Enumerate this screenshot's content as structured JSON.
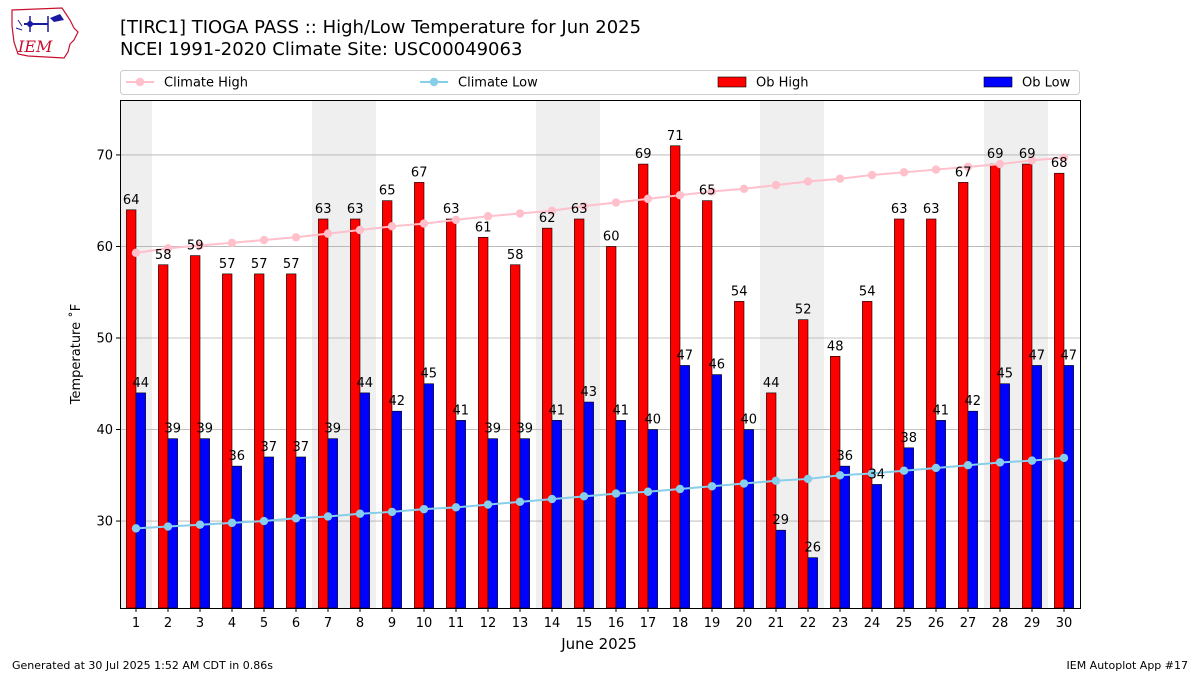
{
  "header": {
    "logo_text": "IEM",
    "title_line1": "[TIRC1] TIOGA PASS :: High/Low Temperature for Jun 2025",
    "title_line2": "NCEI 1991-2020 Climate Site: USC00049063"
  },
  "footer": {
    "generated": "Generated at 30 Jul 2025 1:52 AM CDT in 0.86s",
    "app": "IEM Autoplot App #17"
  },
  "chart_data": {
    "type": "bar",
    "xlabel": "June 2025",
    "ylabel": "Temperature ˚F",
    "ylim": [
      20.5,
      76
    ],
    "yticks": [
      30,
      40,
      50,
      60,
      70
    ],
    "grid": true,
    "legend_position": "top",
    "categories": [
      1,
      2,
      3,
      4,
      5,
      6,
      7,
      8,
      9,
      10,
      11,
      12,
      13,
      14,
      15,
      16,
      17,
      18,
      19,
      20,
      21,
      22,
      23,
      24,
      25,
      26,
      27,
      28,
      29,
      30
    ],
    "weekend_shading": [
      [
        1,
        1
      ],
      [
        7,
        8
      ],
      [
        14,
        15
      ],
      [
        21,
        22
      ],
      [
        28,
        29
      ]
    ],
    "series": [
      {
        "name": "Ob High",
        "kind": "bar",
        "color": "#ff0000",
        "values": [
          64,
          58,
          59,
          57,
          57,
          57,
          63,
          63,
          65,
          67,
          63,
          61,
          58,
          62,
          63,
          60,
          69,
          71,
          65,
          54,
          44,
          52,
          48,
          54,
          63,
          63,
          67,
          69,
          69,
          68
        ],
        "labels": [
          64,
          58,
          59,
          57,
          57,
          57,
          63,
          63,
          65,
          67,
          63,
          61,
          58,
          62,
          63,
          60,
          69,
          71,
          65,
          54,
          44,
          52,
          48,
          54,
          63,
          63,
          67,
          69,
          69,
          68
        ]
      },
      {
        "name": "Ob Low",
        "kind": "bar",
        "color": "#0000ff",
        "values": [
          44,
          39,
          39,
          36,
          37,
          37,
          39,
          44,
          42,
          45,
          41,
          39,
          39,
          41,
          43,
          41,
          40,
          47,
          46,
          40,
          29,
          26,
          36,
          34,
          38,
          41,
          42,
          45,
          47,
          47
        ],
        "labels": [
          44,
          39,
          39,
          36,
          37,
          37,
          39,
          44,
          42,
          45,
          41,
          39,
          39,
          41,
          43,
          41,
          40,
          47,
          46,
          40,
          29,
          26,
          36,
          34,
          38,
          41,
          42,
          45,
          47,
          47
        ]
      },
      {
        "name": "Climate High",
        "kind": "line",
        "color": "#ffc0cb",
        "values": [
          59.3,
          59.8,
          60.1,
          60.4,
          60.7,
          61.0,
          61.4,
          61.8,
          62.2,
          62.5,
          62.9,
          63.3,
          63.6,
          63.9,
          64.4,
          64.8,
          65.2,
          65.6,
          66.0,
          66.3,
          66.7,
          67.1,
          67.4,
          67.8,
          68.1,
          68.4,
          68.7,
          69.0,
          69.4,
          69.7
        ]
      },
      {
        "name": "Climate Low",
        "kind": "line",
        "color": "#87ceeb",
        "values": [
          29.2,
          29.4,
          29.6,
          29.8,
          30.0,
          30.3,
          30.5,
          30.8,
          31.0,
          31.3,
          31.5,
          31.8,
          32.1,
          32.4,
          32.7,
          33.0,
          33.2,
          33.5,
          33.8,
          34.1,
          34.4,
          34.6,
          35.0,
          35.2,
          35.5,
          35.8,
          36.1,
          36.4,
          36.6,
          36.9
        ]
      }
    ]
  }
}
